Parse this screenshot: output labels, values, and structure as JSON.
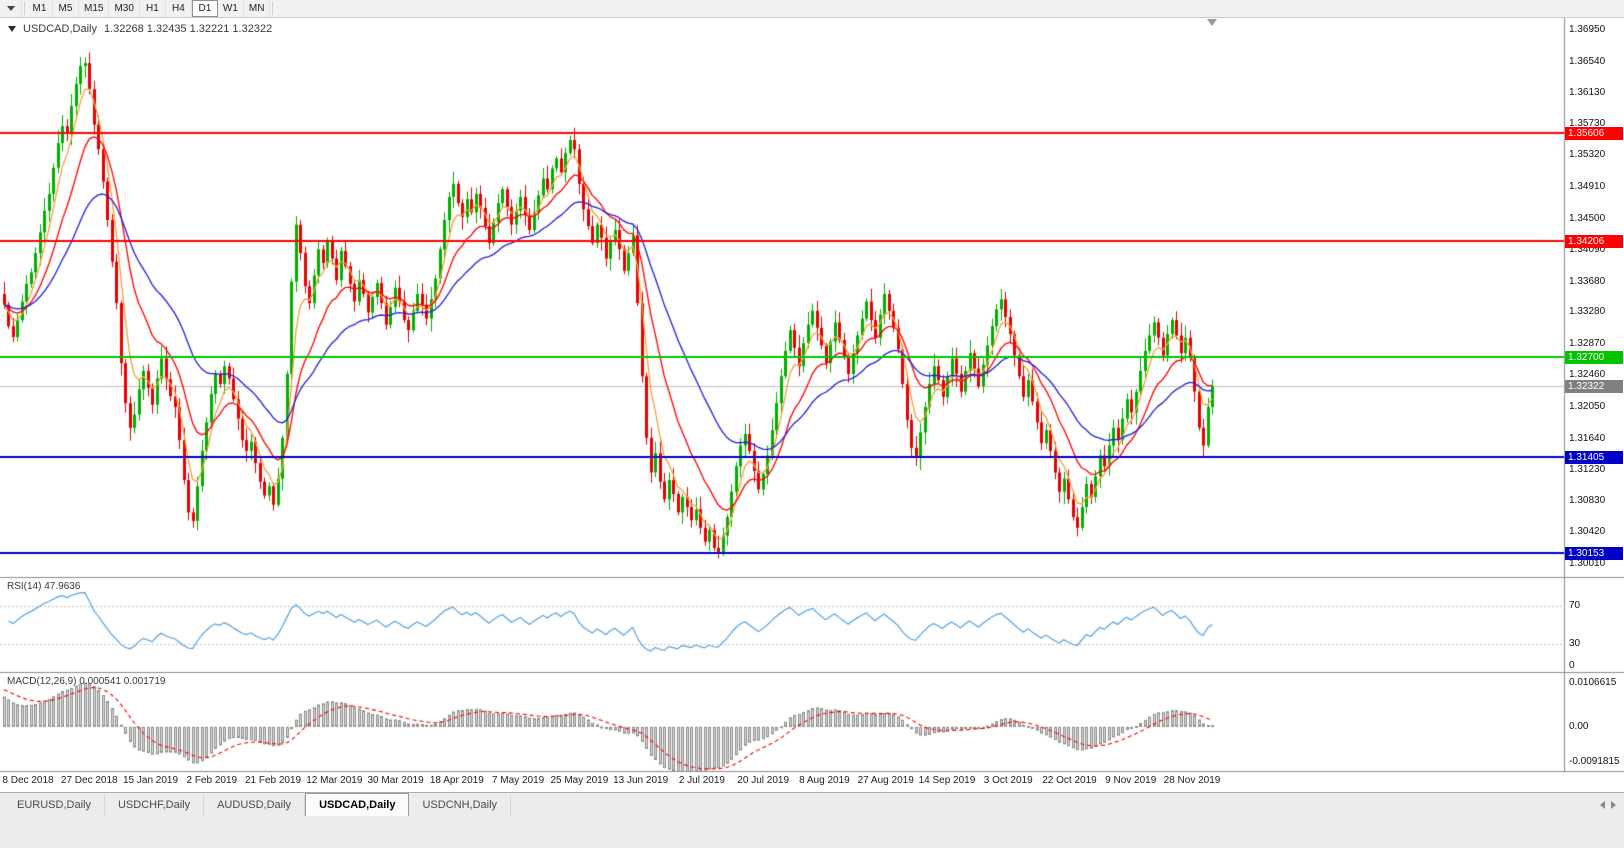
{
  "toolbar": {
    "timeframes": [
      "M1",
      "M5",
      "M15",
      "M30",
      "H1",
      "H4",
      "D1",
      "W1",
      "MN"
    ],
    "active_timeframe": "D1"
  },
  "chart": {
    "title_symbol": "USDCAD,Daily",
    "title_ohlc": "1.32268 1.32435 1.32221 1.32322"
  },
  "tabs": {
    "items": [
      "EURUSD,Daily",
      "USDCHF,Daily",
      "AUDUSD,Daily",
      "USDCAD,Daily",
      "USDCNH,Daily"
    ],
    "active": "USDCAD,Daily"
  },
  "chart_data": {
    "type": "candlestick+indicators",
    "symbol": "USDCAD",
    "timeframe": "Daily",
    "ohlc": {
      "open": 1.32268,
      "high": 1.32435,
      "low": 1.32221,
      "close": 1.32322
    },
    "current_price": "1.32322",
    "current_price_color": "#808080",
    "price_axis": {
      "labels": [
        "1.36950",
        "1.36540",
        "1.36130",
        "1.35730",
        "1.35320",
        "1.34910",
        "1.34500",
        "1.34090",
        "1.33680",
        "1.33280",
        "1.32870",
        "1.32460",
        "1.32050",
        "1.31640",
        "1.31230",
        "1.30830",
        "1.30420",
        "1.30010"
      ]
    },
    "x_axis": {
      "labels": [
        "8 Dec 2018",
        "27 Dec 2018",
        "15 Jan 2019",
        "2 Feb 2019",
        "21 Feb 2019",
        "12 Mar 2019",
        "30 Mar 2019",
        "18 Apr 2019",
        "7 May 2019",
        "25 May 2019",
        "13 Jun 2019",
        "2 Jul 2019",
        "20 Jul 2019",
        "8 Aug 2019",
        "27 Aug 2019",
        "14 Sep 2019",
        "3 Oct 2019",
        "22 Oct 2019",
        "9 Nov 2019",
        "28 Nov 2019"
      ]
    },
    "levels": [
      {
        "value": "1.35606",
        "color": "#ff0000",
        "role": "resistance"
      },
      {
        "value": "1.34206",
        "color": "#ff0000",
        "role": "resistance"
      },
      {
        "value": "1.32700",
        "color": "#00c400",
        "role": "pivot"
      },
      {
        "value": "1.31405",
        "color": "#0000c8",
        "role": "support"
      },
      {
        "value": "1.30153",
        "color": "#0000c8",
        "role": "support"
      }
    ],
    "candles": {
      "up_color": "#00b000",
      "down_color": "#e80000",
      "closes": [
        1.3338,
        1.331,
        1.3296,
        1.3318,
        1.3342,
        1.3365,
        1.338,
        1.3405,
        1.3432,
        1.346,
        1.3482,
        1.3516,
        1.3548,
        1.357,
        1.3562,
        1.3596,
        1.3625,
        1.3648,
        1.3652,
        1.3618,
        1.3572,
        1.354,
        1.3498,
        1.3448,
        1.3394,
        1.334,
        1.3262,
        1.321,
        1.3178,
        1.3195,
        1.3228,
        1.3252,
        1.323,
        1.3208,
        1.3242,
        1.3268,
        1.3241,
        1.3219,
        1.3205,
        1.3162,
        1.311,
        1.3068,
        1.3057,
        1.3102,
        1.3148,
        1.3185,
        1.3222,
        1.3248,
        1.3235,
        1.3258,
        1.3242,
        1.3215,
        1.319,
        1.3162,
        1.3148,
        1.316,
        1.3132,
        1.3108,
        1.309,
        1.3102,
        1.3078,
        1.3112,
        1.3165,
        1.3248,
        1.3368,
        1.3442,
        1.3405,
        1.3362,
        1.334,
        1.3376,
        1.341,
        1.3392,
        1.3422,
        1.3398,
        1.337,
        1.3408,
        1.3388,
        1.3365,
        1.3342,
        1.337,
        1.3352,
        1.3328,
        1.3348,
        1.3366,
        1.334,
        1.3312,
        1.3335,
        1.336,
        1.3342,
        1.3318,
        1.3305,
        1.333,
        1.3352,
        1.3338,
        1.332,
        1.3345,
        1.3372,
        1.341,
        1.3448,
        1.3478,
        1.3495,
        1.347,
        1.3452,
        1.3475,
        1.3458,
        1.3482,
        1.3464,
        1.344,
        1.3418,
        1.3445,
        1.347,
        1.3488,
        1.3465,
        1.3442,
        1.346,
        1.3478,
        1.3455,
        1.3435,
        1.3458,
        1.348,
        1.3502,
        1.3488,
        1.3515,
        1.3528,
        1.351,
        1.3535,
        1.3552,
        1.354,
        1.3495,
        1.3462,
        1.344,
        1.3418,
        1.3442,
        1.3425,
        1.3398,
        1.342,
        1.3435,
        1.341,
        1.3382,
        1.3405,
        1.3428,
        1.334,
        1.3245,
        1.3165,
        1.312,
        1.3145,
        1.3108,
        1.3085,
        1.311,
        1.3092,
        1.3068,
        1.3088,
        1.3075,
        1.3058,
        1.3072,
        1.3048,
        1.303,
        1.3045,
        1.3022,
        1.3016,
        1.3038,
        1.3062,
        1.3095,
        1.3128,
        1.3155,
        1.317,
        1.3148,
        1.3122,
        1.3098,
        1.3118,
        1.3142,
        1.3175,
        1.321,
        1.3245,
        1.3278,
        1.3305,
        1.3282,
        1.3258,
        1.3288,
        1.3312,
        1.333,
        1.3308,
        1.3285,
        1.3262,
        1.329,
        1.3315,
        1.3292,
        1.327,
        1.3248,
        1.3275,
        1.3298,
        1.332,
        1.3342,
        1.3318,
        1.3295,
        1.3325,
        1.3352,
        1.333,
        1.3308,
        1.328,
        1.3235,
        1.3188,
        1.3152,
        1.314,
        1.3172,
        1.3205,
        1.3235,
        1.3258,
        1.324,
        1.3218,
        1.3245,
        1.3268,
        1.3248,
        1.3225,
        1.3252,
        1.3275,
        1.3255,
        1.3232,
        1.326,
        1.3285,
        1.331,
        1.3332,
        1.3345,
        1.3322,
        1.33,
        1.3272,
        1.3245,
        1.3218,
        1.324,
        1.3212,
        1.3185,
        1.3158,
        1.3175,
        1.3148,
        1.312,
        1.3095,
        1.3112,
        1.3085,
        1.3062,
        1.3048,
        1.3075,
        1.3105,
        1.3088,
        1.3115,
        1.3142,
        1.3128,
        1.3155,
        1.3178,
        1.3162,
        1.319,
        1.3215,
        1.3198,
        1.3225,
        1.3252,
        1.3278,
        1.3298,
        1.3315,
        1.3295,
        1.3272,
        1.33,
        1.3318,
        1.3298,
        1.3275,
        1.3295,
        1.327,
        1.3225,
        1.3178,
        1.3155,
        1.3205,
        1.32322
      ]
    },
    "moving_averages": [
      {
        "name": "ma-fast",
        "type": "ema",
        "period": 5,
        "color": "#f2a23c"
      },
      {
        "name": "ma-medium",
        "type": "ema",
        "period": 13,
        "color": "#ff0000"
      },
      {
        "name": "ma-slow",
        "type": "ema",
        "period": 30,
        "color": "#2020dd"
      }
    ],
    "rsi": {
      "label": "RSI(14) 47.9636",
      "period": 14,
      "color": "#55a2e0",
      "levels": [
        "70",
        "30",
        "0"
      ]
    },
    "macd": {
      "label": "MACD(12,26,9) 0.000541 0.001719",
      "fast": 12,
      "slow": 26,
      "signal": 9,
      "axis_labels": [
        "0.0106615",
        "0.00",
        "-0.0091815"
      ],
      "histogram_color": "#d9d9d9",
      "histogram_border": "#909090",
      "signal_color": "#ff0000"
    }
  }
}
